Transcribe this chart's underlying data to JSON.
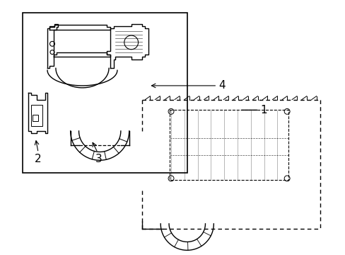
{
  "title": "",
  "background_color": "#ffffff",
  "line_color": "#000000",
  "label_color": "#000000",
  "fig_width": 4.89,
  "fig_height": 3.6,
  "dpi": 100
}
